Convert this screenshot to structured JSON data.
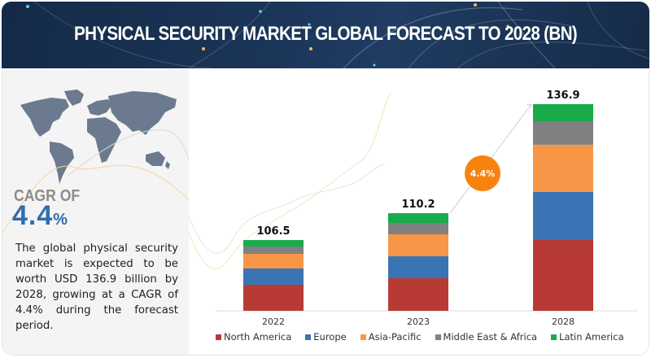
{
  "header": {
    "title": "PHYSICAL SECURITY MARKET GLOBAL FORECAST TO 2028 (BN)"
  },
  "left_panel": {
    "map_icon": "world-map",
    "cagr_label": "CAGR OF",
    "cagr_value": "4.4",
    "cagr_unit": "%",
    "description": "The global physical security market is expected to be worth USD 136.9 billion by 2028, growing at a CAGR of 4.4% during the forecast period."
  },
  "chart_data": {
    "type": "bar",
    "stacked": true,
    "title": "Physical Security Market Global Forecast to 2028 (BN)",
    "xlabel": "",
    "ylabel": "",
    "categories": [
      "2022",
      "2023",
      "2028"
    ],
    "totals": [
      106.5,
      110.2,
      136.9
    ],
    "total_labels": [
      "106.5",
      "110.2",
      "136.9"
    ],
    "series": [
      {
        "name": "North America",
        "color": "#b83a34",
        "values": [
          39.2,
          36.7,
          46.9
        ]
      },
      {
        "name": "Europe",
        "color": "#3a74b5",
        "values": [
          24.5,
          24.8,
          31.8
        ]
      },
      {
        "name": "Asia-Pacific",
        "color": "#f79646",
        "values": [
          22.0,
          24.8,
          31.3
        ]
      },
      {
        "name": "Middle East & Africa",
        "color": "#808080",
        "values": [
          11.0,
          12.9,
          15.6
        ]
      },
      {
        "name": "Latin America",
        "color": "#1aab4b",
        "values": [
          9.8,
          11.0,
          11.3
        ]
      }
    ],
    "annotation": {
      "text": "4.4%",
      "color": "#f7830f",
      "between": [
        "2023",
        "2028"
      ]
    },
    "grid": false,
    "legend": "bottom"
  }
}
